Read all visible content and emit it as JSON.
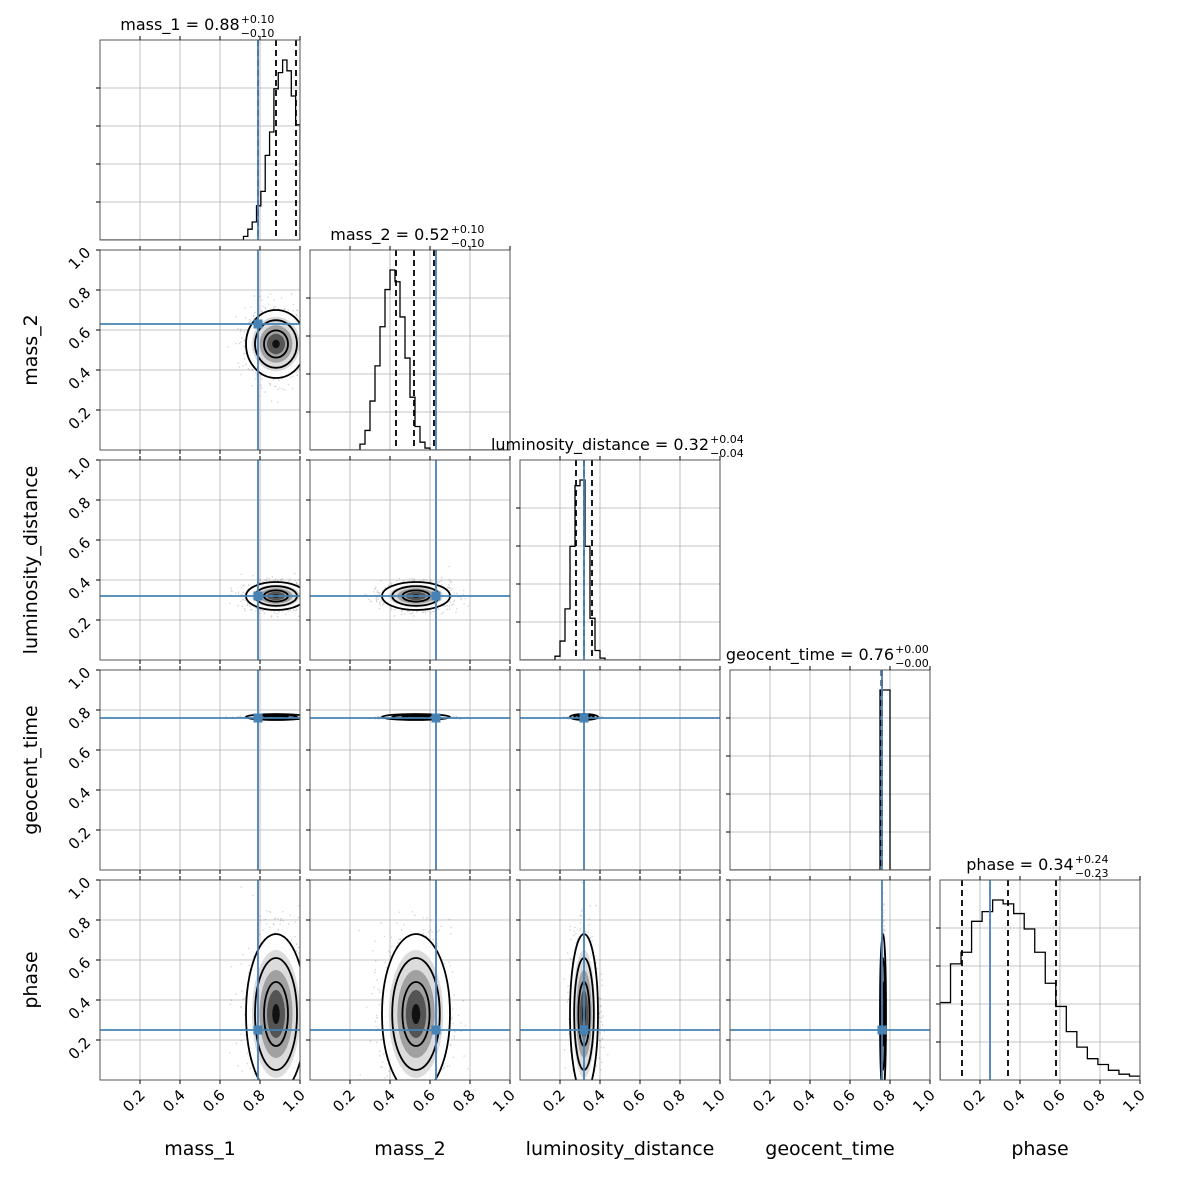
{
  "chart_data": {
    "type": "corner",
    "parameters": [
      "mass_1",
      "mass_2",
      "luminosity_distance",
      "geocent_time",
      "phase"
    ],
    "axis_range": [
      0,
      1
    ],
    "tick_labels": [
      "0.2",
      "0.4",
      "0.6",
      "0.8",
      "1.0"
    ],
    "truths": [
      0.79,
      0.63,
      0.32,
      0.76,
      0.25
    ],
    "grid": true,
    "truth_color": "#4682b4",
    "contour_color": "#000000",
    "panel_titles": [
      {
        "param": "mass_1",
        "value": "0.88",
        "plus": "+0.10",
        "minus": "−0.10"
      },
      {
        "param": "mass_2",
        "value": "0.52",
        "plus": "+0.10",
        "minus": "−0.10"
      },
      {
        "param": "luminosity_distance",
        "value": "0.32",
        "plus": "+0.04",
        "minus": "−0.04"
      },
      {
        "param": "geocent_time",
        "value": "0.76",
        "plus": "+0.00",
        "minus": "−0.00"
      },
      {
        "param": "phase",
        "value": "0.34",
        "plus": "+0.24",
        "minus": "−0.23"
      }
    ],
    "marginals": [
      {
        "mean": 0.88,
        "std": 0.075,
        "quantiles": [
          0.79,
          0.88,
          0.98
        ]
      },
      {
        "mean": 0.53,
        "std": 0.085,
        "quantiles": [
          0.43,
          0.52,
          0.62
        ]
      },
      {
        "mean": 0.32,
        "std": 0.035,
        "quantiles": [
          0.28,
          0.32,
          0.36
        ]
      },
      {
        "mean": 0.765,
        "std": 0.003,
        "quantiles": [
          0.757,
          0.76,
          0.76
        ]
      },
      {
        "mean": 0.33,
        "std": 0.2,
        "quantiles": [
          0.11,
          0.34,
          0.58
        ]
      }
    ],
    "histograms": [
      {
        "param": "mass_1",
        "values": [
          0,
          0,
          0,
          0,
          0,
          0,
          0,
          0,
          0,
          0,
          0,
          0,
          0,
          0,
          0,
          0,
          0,
          0,
          0,
          0,
          0,
          0,
          0,
          0,
          0,
          0,
          0,
          0,
          0,
          0,
          0,
          0,
          0,
          0.02,
          0.06,
          0.1,
          0.19,
          0.27,
          0.47,
          0.6,
          0.84,
          0.93,
          1.0,
          0.94,
          0.8,
          0.64
        ]
      },
      {
        "param": "mass_2",
        "values": [
          0,
          0,
          0,
          0,
          0,
          0,
          0,
          0,
          0,
          0,
          0.03,
          0.1,
          0.25,
          0.43,
          0.63,
          0.82,
          0.92,
          0.86,
          0.68,
          0.47,
          0.27,
          0.12,
          0.04,
          0.01,
          0,
          0,
          0,
          0,
          0,
          0,
          0,
          0,
          0,
          0,
          0,
          0,
          0,
          0,
          0,
          0
        ]
      },
      {
        "param": "luminosity_distance",
        "values": [
          0,
          0,
          0,
          0,
          0,
          0,
          0,
          0.02,
          0.1,
          0.27,
          0.6,
          0.92,
          0.95,
          0.6,
          0.22,
          0.05,
          0.01,
          0,
          0,
          0,
          0,
          0,
          0,
          0,
          0,
          0,
          0,
          0,
          0,
          0,
          0,
          0,
          0,
          0,
          0,
          0,
          0,
          0,
          0,
          0
        ]
      },
      {
        "param": "geocent_time",
        "values": [
          0,
          0,
          0,
          0,
          0,
          0,
          0,
          0,
          0,
          0,
          0,
          0,
          0,
          0,
          0,
          0,
          0,
          0,
          0,
          0,
          0,
          0,
          0,
          0,
          0,
          0,
          0,
          0,
          0,
          0,
          1.0,
          1.0,
          0,
          0,
          0,
          0,
          0,
          0,
          0,
          0
        ]
      },
      {
        "param": "phase",
        "values": [
          0.4,
          0.6,
          0.66,
          0.82,
          0.87,
          0.93,
          0.91,
          0.86,
          0.78,
          0.66,
          0.5,
          0.38,
          0.25,
          0.17,
          0.11,
          0.08,
          0.05,
          0.03,
          0.02
        ]
      }
    ]
  }
}
